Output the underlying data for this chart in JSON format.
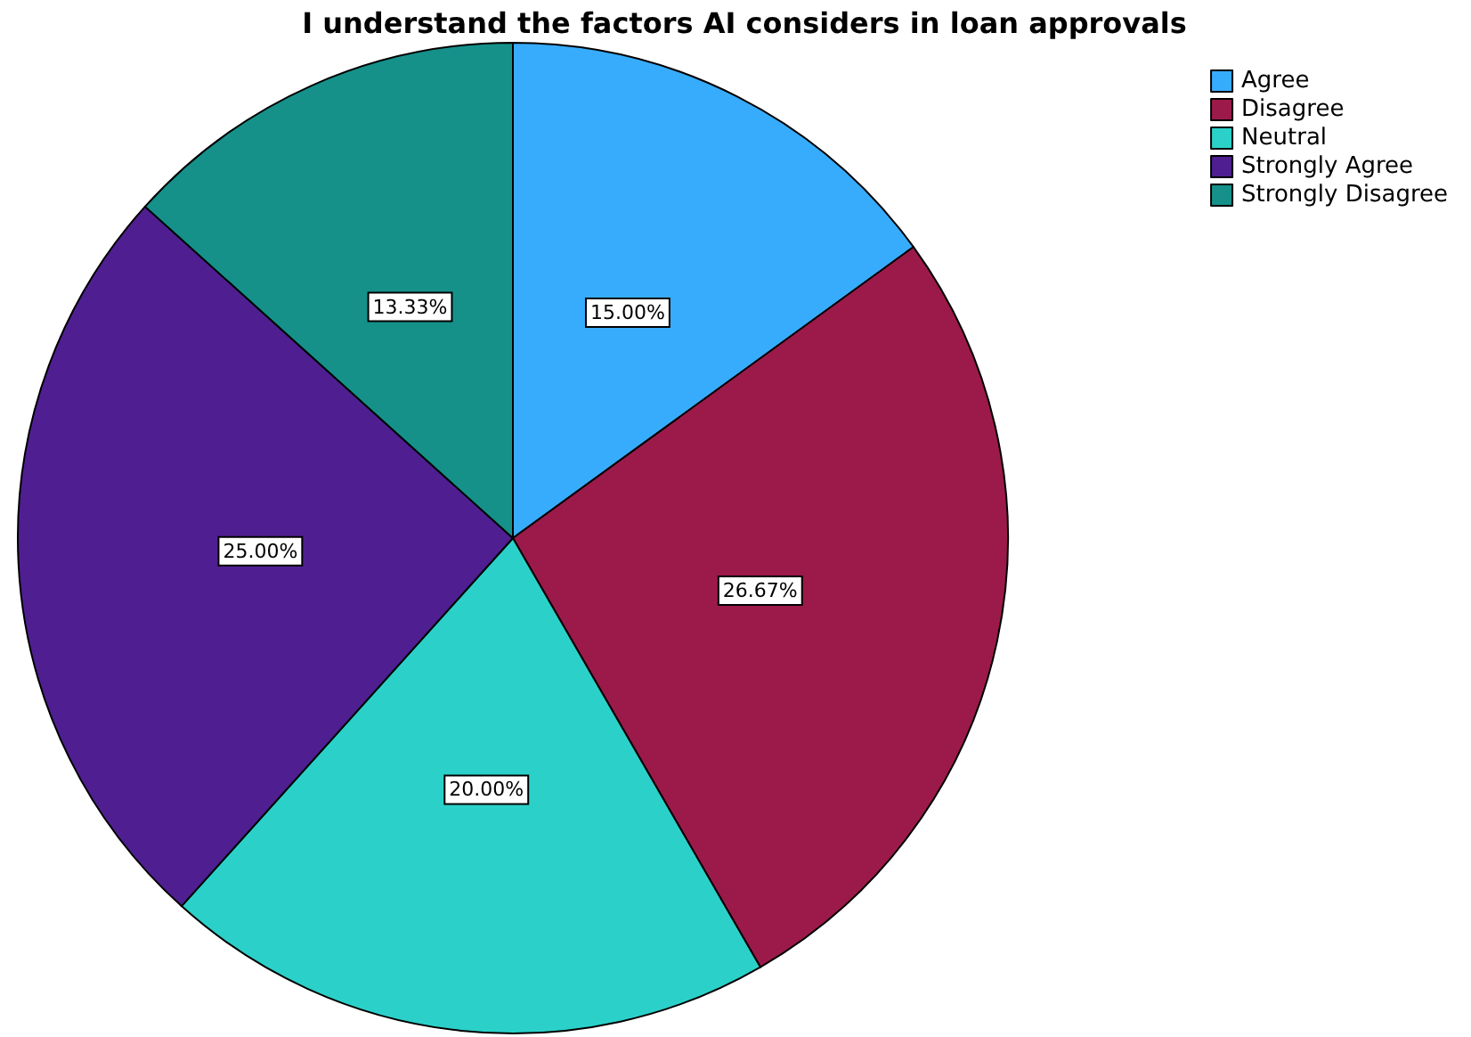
{
  "chart_data": {
    "type": "pie",
    "title": "I understand the factors AI considers in loan approvals",
    "categories": [
      "Agree",
      "Disagree",
      "Neutral",
      "Strongly Agree",
      "Strongly Disagree"
    ],
    "values": [
      15.0,
      26.67,
      20.0,
      25.0,
      13.33
    ],
    "colors": [
      "#38acfc",
      "#9c1a4a",
      "#2bd1c9",
      "#4f1f91",
      "#15918a"
    ],
    "value_labels": [
      "15.00%",
      "26.67%",
      "20.00%",
      "25.00%",
      "13.33%"
    ],
    "legend": "top right"
  }
}
